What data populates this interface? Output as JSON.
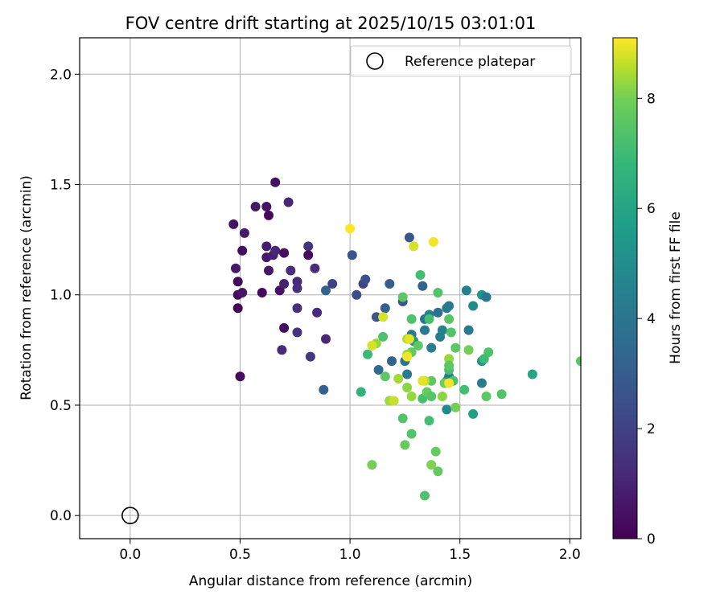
{
  "chart_data": {
    "type": "scatter",
    "title": "FOV centre drift starting at 2025/10/15 03:01:01",
    "xlabel": "Angular distance from reference (arcmin)",
    "ylabel": "Rotation from reference (arcmin)",
    "xlim": [
      -0.23,
      2.05
    ],
    "ylim": [
      -0.105,
      2.165
    ],
    "xticks": [
      0.0,
      0.5,
      1.0,
      1.5,
      2.0
    ],
    "xtick_labels": [
      "0.0",
      "0.5",
      "1.0",
      "1.5",
      "2.0"
    ],
    "yticks": [
      0.0,
      0.5,
      1.0,
      1.5,
      2.0
    ],
    "ytick_labels": [
      "0.0",
      "0.5",
      "1.0",
      "1.5",
      "2.0"
    ],
    "grid": true,
    "legend": {
      "placement": "top-right",
      "label": "Reference platepar"
    },
    "reference_point": {
      "x": 0.0,
      "y": 0.0
    },
    "colorbar": {
      "label": "Hours from first FF file",
      "colormap": "viridis",
      "min": 0,
      "max": 9.1,
      "ticks": [
        0,
        2,
        4,
        6,
        8
      ],
      "tick_labels": [
        "0",
        "2",
        "4",
        "6",
        "8"
      ]
    },
    "points": [
      {
        "x": 0.47,
        "y": 1.32,
        "c": 0.5
      },
      {
        "x": 0.49,
        "y": 1.06,
        "c": 0.2
      },
      {
        "x": 0.48,
        "y": 1.12,
        "c": 0.6
      },
      {
        "x": 0.52,
        "y": 1.28,
        "c": 0.7
      },
      {
        "x": 0.51,
        "y": 1.2,
        "c": 0.4
      },
      {
        "x": 0.49,
        "y": 1.0,
        "c": 0.3
      },
      {
        "x": 0.51,
        "y": 1.01,
        "c": 0.6
      },
      {
        "x": 0.49,
        "y": 0.94,
        "c": 0.1
      },
      {
        "x": 0.5,
        "y": 0.63,
        "c": 0.3
      },
      {
        "x": 0.57,
        "y": 1.4,
        "c": 0.6
      },
      {
        "x": 0.62,
        "y": 1.4,
        "c": 0.5
      },
      {
        "x": 0.63,
        "y": 1.36,
        "c": 0.2
      },
      {
        "x": 0.66,
        "y": 1.51,
        "c": 0.4
      },
      {
        "x": 0.72,
        "y": 1.42,
        "c": 1.1
      },
      {
        "x": 0.62,
        "y": 1.22,
        "c": 0.8
      },
      {
        "x": 0.62,
        "y": 1.17,
        "c": 0.7
      },
      {
        "x": 0.65,
        "y": 1.18,
        "c": 0.9
      },
      {
        "x": 0.66,
        "y": 1.2,
        "c": 1.1
      },
      {
        "x": 0.7,
        "y": 1.19,
        "c": 0.4
      },
      {
        "x": 0.63,
        "y": 1.11,
        "c": 0.6
      },
      {
        "x": 0.6,
        "y": 1.01,
        "c": 0.3
      },
      {
        "x": 0.68,
        "y": 1.02,
        "c": 0.5
      },
      {
        "x": 0.7,
        "y": 1.05,
        "c": 0.9
      },
      {
        "x": 0.73,
        "y": 1.11,
        "c": 1.3
      },
      {
        "x": 0.76,
        "y": 1.06,
        "c": 1.2
      },
      {
        "x": 0.76,
        "y": 1.03,
        "c": 1.4
      },
      {
        "x": 0.81,
        "y": 1.22,
        "c": 1.5
      },
      {
        "x": 0.81,
        "y": 1.18,
        "c": 0.3
      },
      {
        "x": 0.84,
        "y": 1.12,
        "c": 1.3
      },
      {
        "x": 0.76,
        "y": 0.94,
        "c": 1.4
      },
      {
        "x": 0.85,
        "y": 0.92,
        "c": 1.2
      },
      {
        "x": 0.7,
        "y": 0.85,
        "c": 0.4
      },
      {
        "x": 0.76,
        "y": 0.83,
        "c": 1.5
      },
      {
        "x": 0.69,
        "y": 0.75,
        "c": 1.2
      },
      {
        "x": 0.82,
        "y": 0.72,
        "c": 1.6
      },
      {
        "x": 0.89,
        "y": 0.8,
        "c": 1.1
      },
      {
        "x": 0.89,
        "y": 1.02,
        "c": 3.2
      },
      {
        "x": 0.92,
        "y": 1.05,
        "c": 2.0
      },
      {
        "x": 0.88,
        "y": 0.57,
        "c": 3.2
      },
      {
        "x": 1.01,
        "y": 1.18,
        "c": 2.6
      },
      {
        "x": 1.03,
        "y": 1.0,
        "c": 2.4
      },
      {
        "x": 1.06,
        "y": 1.05,
        "c": 2.1
      },
      {
        "x": 1.07,
        "y": 1.07,
        "c": 2.5
      },
      {
        "x": 1.18,
        "y": 1.05,
        "c": 3.0
      },
      {
        "x": 1.27,
        "y": 1.26,
        "c": 2.8
      },
      {
        "x": 1.33,
        "y": 1.04,
        "c": 3.2
      },
      {
        "x": 1.24,
        "y": 0.97,
        "c": 2.9
      },
      {
        "x": 1.16,
        "y": 0.94,
        "c": 3.1
      },
      {
        "x": 1.12,
        "y": 0.9,
        "c": 2.7
      },
      {
        "x": 1.13,
        "y": 0.66,
        "c": 3.5
      },
      {
        "x": 1.19,
        "y": 0.7,
        "c": 3.3
      },
      {
        "x": 1.18,
        "y": 0.52,
        "c": 3.0
      },
      {
        "x": 1.25,
        "y": 0.7,
        "c": 4.0
      },
      {
        "x": 1.26,
        "y": 0.64,
        "c": 4.2
      },
      {
        "x": 1.28,
        "y": 0.82,
        "c": 4.3
      },
      {
        "x": 1.29,
        "y": 0.79,
        "c": 5.5
      },
      {
        "x": 1.34,
        "y": 0.84,
        "c": 4.2
      },
      {
        "x": 1.34,
        "y": 0.89,
        "c": 4.0
      },
      {
        "x": 1.36,
        "y": 0.91,
        "c": 4.5
      },
      {
        "x": 1.37,
        "y": 0.76,
        "c": 4.4
      },
      {
        "x": 1.4,
        "y": 0.92,
        "c": 3.8
      },
      {
        "x": 1.41,
        "y": 0.81,
        "c": 4.3
      },
      {
        "x": 1.42,
        "y": 0.84,
        "c": 4.6
      },
      {
        "x": 1.44,
        "y": 0.94,
        "c": 4.2
      },
      {
        "x": 1.45,
        "y": 0.95,
        "c": 4.1
      },
      {
        "x": 1.44,
        "y": 0.61,
        "c": 4.6
      },
      {
        "x": 1.45,
        "y": 0.63,
        "c": 4.4
      },
      {
        "x": 1.44,
        "y": 0.48,
        "c": 4.8
      },
      {
        "x": 1.53,
        "y": 1.02,
        "c": 4.4
      },
      {
        "x": 1.54,
        "y": 0.84,
        "c": 4.2
      },
      {
        "x": 1.56,
        "y": 0.95,
        "c": 4.9
      },
      {
        "x": 1.6,
        "y": 1.0,
        "c": 5.3
      },
      {
        "x": 1.62,
        "y": 0.99,
        "c": 4.0
      },
      {
        "x": 1.6,
        "y": 0.6,
        "c": 4.3
      },
      {
        "x": 1.6,
        "y": 0.7,
        "c": 5.2
      },
      {
        "x": 1.56,
        "y": 0.46,
        "c": 5.8
      },
      {
        "x": 1.63,
        "y": 0.74,
        "c": 7.3
      },
      {
        "x": 1.61,
        "y": 0.71,
        "c": 7.0
      },
      {
        "x": 1.62,
        "y": 0.54,
        "c": 7.6
      },
      {
        "x": 1.69,
        "y": 0.55,
        "c": 7.4
      },
      {
        "x": 1.83,
        "y": 0.64,
        "c": 6.0
      },
      {
        "x": 2.05,
        "y": 0.7,
        "c": 7.5
      },
      {
        "x": 1.32,
        "y": 1.09,
        "c": 7.1
      },
      {
        "x": 1.36,
        "y": 0.89,
        "c": 7.2
      },
      {
        "x": 1.28,
        "y": 0.89,
        "c": 7.3
      },
      {
        "x": 1.24,
        "y": 0.99,
        "c": 7.6
      },
      {
        "x": 1.4,
        "y": 1.01,
        "c": 7.4
      },
      {
        "x": 1.45,
        "y": 0.89,
        "c": 7.5
      },
      {
        "x": 1.46,
        "y": 0.83,
        "c": 7.4
      },
      {
        "x": 1.48,
        "y": 0.76,
        "c": 7.6
      },
      {
        "x": 1.54,
        "y": 0.75,
        "c": 8.0
      },
      {
        "x": 1.52,
        "y": 0.57,
        "c": 7.1
      },
      {
        "x": 1.47,
        "y": 0.61,
        "c": 7.3
      },
      {
        "x": 1.43,
        "y": 0.6,
        "c": 7.9
      },
      {
        "x": 1.45,
        "y": 0.66,
        "c": 7.2
      },
      {
        "x": 1.37,
        "y": 0.61,
        "c": 7.6
      },
      {
        "x": 1.33,
        "y": 0.53,
        "c": 7.2
      },
      {
        "x": 1.35,
        "y": 0.56,
        "c": 7.8
      },
      {
        "x": 1.37,
        "y": 0.54,
        "c": 7.5
      },
      {
        "x": 1.28,
        "y": 0.54,
        "c": 8.3
      },
      {
        "x": 1.28,
        "y": 0.74,
        "c": 7.7
      },
      {
        "x": 1.31,
        "y": 0.77,
        "c": 7.6
      },
      {
        "x": 1.26,
        "y": 0.73,
        "c": 8.3
      },
      {
        "x": 1.26,
        "y": 0.8,
        "c": 8.5
      },
      {
        "x": 1.15,
        "y": 0.81,
        "c": 7.3
      },
      {
        "x": 1.08,
        "y": 0.73,
        "c": 6.9
      },
      {
        "x": 1.12,
        "y": 0.78,
        "c": 8.3
      },
      {
        "x": 1.16,
        "y": 0.63,
        "c": 7.6
      },
      {
        "x": 1.22,
        "y": 0.62,
        "c": 8.4
      },
      {
        "x": 1.26,
        "y": 0.58,
        "c": 8.2
      },
      {
        "x": 1.18,
        "y": 0.52,
        "c": 8.4
      },
      {
        "x": 1.05,
        "y": 0.56,
        "c": 6.6
      },
      {
        "x": 1.24,
        "y": 0.44,
        "c": 7.4
      },
      {
        "x": 1.28,
        "y": 0.37,
        "c": 7.4
      },
      {
        "x": 1.25,
        "y": 0.32,
        "c": 7.8
      },
      {
        "x": 1.36,
        "y": 0.43,
        "c": 7.1
      },
      {
        "x": 1.39,
        "y": 0.29,
        "c": 7.8
      },
      {
        "x": 1.37,
        "y": 0.23,
        "c": 8.1
      },
      {
        "x": 1.4,
        "y": 0.2,
        "c": 7.7
      },
      {
        "x": 1.34,
        "y": 0.09,
        "c": 7.3
      },
      {
        "x": 1.1,
        "y": 0.23,
        "c": 8.0
      },
      {
        "x": 1.42,
        "y": 0.54,
        "c": 8.2
      },
      {
        "x": 1.48,
        "y": 0.49,
        "c": 8.0
      },
      {
        "x": 1.34,
        "y": 0.61,
        "c": 8.6
      },
      {
        "x": 1.45,
        "y": 0.71,
        "c": 8.3
      },
      {
        "x": 1.45,
        "y": 0.68,
        "c": 7.6
      },
      {
        "x": 1.1,
        "y": 0.77,
        "c": 8.8
      },
      {
        "x": 1.15,
        "y": 0.9,
        "c": 8.8
      },
      {
        "x": 1.29,
        "y": 1.22,
        "c": 8.8
      },
      {
        "x": 1.38,
        "y": 1.24,
        "c": 9.0
      },
      {
        "x": 1.0,
        "y": 1.3,
        "c": 9.1
      },
      {
        "x": 1.45,
        "y": 0.6,
        "c": 9.0
      },
      {
        "x": 1.33,
        "y": 0.61,
        "c": 8.9
      },
      {
        "x": 1.26,
        "y": 0.72,
        "c": 9.0
      },
      {
        "x": 1.27,
        "y": 0.8,
        "c": 8.9
      },
      {
        "x": 1.2,
        "y": 0.52,
        "c": 8.7
      }
    ]
  }
}
